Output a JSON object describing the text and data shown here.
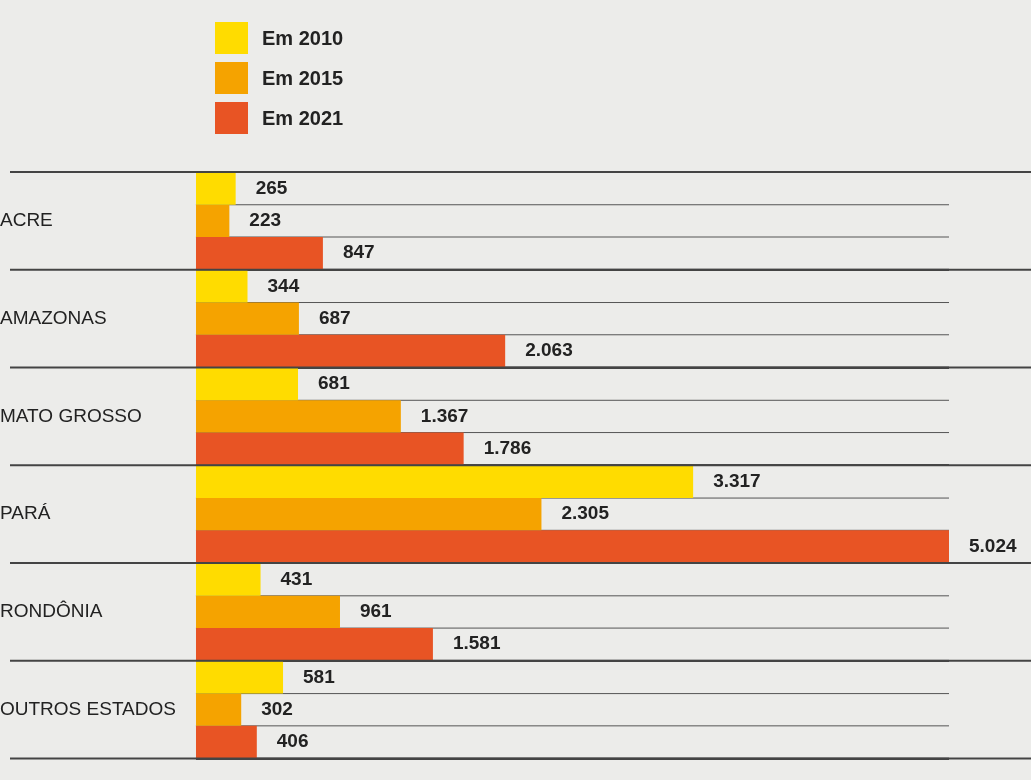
{
  "chart_data": {
    "type": "bar",
    "orientation": "horizontal",
    "categories": [
      "ACRE",
      "AMAZONAS",
      "MATO GROSSO",
      "PARÁ",
      "RONDÔNIA",
      "OUTROS ESTADOS"
    ],
    "series": [
      {
        "name": "Em 2010",
        "color": "#ffdc00",
        "values": [
          265,
          344,
          681,
          3317,
          431,
          581
        ],
        "value_labels": [
          "265",
          "344",
          "681",
          "3.317",
          "431",
          "581"
        ]
      },
      {
        "name": "Em 2015",
        "color": "#f5a300",
        "values": [
          223,
          687,
          1367,
          2305,
          961,
          302
        ],
        "value_labels": [
          "223",
          "687",
          "1.367",
          "2.305",
          "961",
          "302"
        ]
      },
      {
        "name": "Em 2021",
        "color": "#e85424",
        "values": [
          847,
          2063,
          1786,
          5024,
          1581,
          406
        ],
        "value_labels": [
          "847",
          "2.063",
          "1.786",
          "5.024",
          "1.581",
          "406"
        ]
      }
    ],
    "legend": "top left",
    "grid": "y",
    "tick_labels": "y"
  }
}
